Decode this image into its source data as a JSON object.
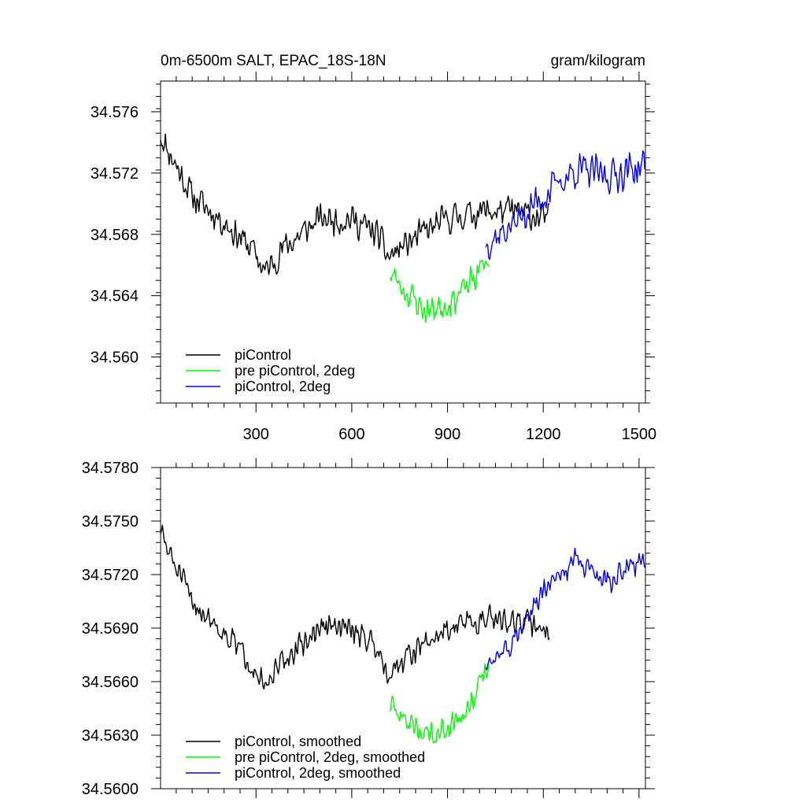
{
  "chart_data": [
    {
      "type": "line",
      "title": "0m-6500m SALT, EPAC_18S-18N",
      "units": "gram/kilogram",
      "xlabel": "",
      "ylabel": "",
      "xlim": [
        1,
        1520
      ],
      "ylim": [
        34.557,
        34.578
      ],
      "x_ticks": [
        300,
        600,
        900,
        1200,
        1500
      ],
      "x_tick_labels": [
        "300",
        "600",
        "900",
        "1200",
        "1500"
      ],
      "y_ticks": [
        34.56,
        34.564,
        34.568,
        34.572,
        34.576
      ],
      "y_tick_labels": [
        "34.560",
        "34.564",
        "34.568",
        "34.572",
        "34.576"
      ],
      "legend_position": "bottom-left",
      "series": [
        {
          "name": "piControl",
          "color": "#000000",
          "x_start": 1,
          "x_end": 1220,
          "trend": [
            [
              1,
              34.5745
            ],
            [
              25,
              34.5735
            ],
            [
              100,
              34.5705
            ],
            [
              200,
              34.5688
            ],
            [
              290,
              34.567
            ],
            [
              330,
              34.5655
            ],
            [
              380,
              34.567
            ],
            [
              500,
              34.569
            ],
            [
              600,
              34.569
            ],
            [
              680,
              34.568
            ],
            [
              715,
              34.5665
            ],
            [
              780,
              34.5675
            ],
            [
              900,
              34.569
            ],
            [
              1000,
              34.5695
            ],
            [
              1100,
              34.5695
            ],
            [
              1220,
              34.569
            ]
          ],
          "noise": 0.0012,
          "seed": 11
        },
        {
          "name": "pre piControl, 2deg",
          "color": "#00ff00",
          "x_start": 720,
          "x_end": 1030,
          "trend": [
            [
              720,
              34.5655
            ],
            [
              760,
              34.5645
            ],
            [
              830,
              34.563
            ],
            [
              900,
              34.5635
            ],
            [
              960,
              34.5645
            ],
            [
              1030,
              34.5665
            ]
          ],
          "noise": 0.0012,
          "seed": 23
        },
        {
          "name": "piControl, 2deg",
          "color": "#0000ff",
          "x_start": 1020,
          "x_end": 1520,
          "trend": [
            [
              1020,
              34.5675
            ],
            [
              1100,
              34.5685
            ],
            [
              1200,
              34.5705
            ],
            [
              1300,
              34.5722
            ],
            [
              1400,
              34.5718
            ],
            [
              1520,
              34.5725
            ]
          ],
          "noise": 0.0014,
          "seed": 37
        }
      ]
    },
    {
      "type": "line",
      "title": "",
      "xlabel": "",
      "ylabel": "",
      "xlim": [
        1,
        1520
      ],
      "ylim": [
        34.56,
        34.578
      ],
      "x_ticks": [
        300,
        600,
        900,
        1200,
        1500
      ],
      "x_tick_labels": [],
      "y_ticks": [
        34.56,
        34.563,
        34.566,
        34.569,
        34.572,
        34.575,
        34.578
      ],
      "y_tick_labels": [
        "34.5600",
        "34.5630",
        "34.5660",
        "34.5690",
        "34.5720",
        "34.5750",
        "34.5780"
      ],
      "legend_position": "bottom-left",
      "series": [
        {
          "name": "piControl, smoothed",
          "color": "#000000",
          "x_start": 1,
          "x_end": 1220,
          "trend": [
            [
              1,
              34.5745
            ],
            [
              20,
              34.5735
            ],
            [
              100,
              34.5705
            ],
            [
              200,
              34.5688
            ],
            [
              290,
              34.567
            ],
            [
              330,
              34.5655
            ],
            [
              380,
              34.567
            ],
            [
              500,
              34.569
            ],
            [
              600,
              34.569
            ],
            [
              680,
              34.568
            ],
            [
              715,
              34.5665
            ],
            [
              780,
              34.5675
            ],
            [
              900,
              34.569
            ],
            [
              1000,
              34.5695
            ],
            [
              1100,
              34.5695
            ],
            [
              1220,
              34.569
            ]
          ],
          "noise": 0.0009,
          "seed": 51
        },
        {
          "name": "pre piControl, 2deg, smoothed",
          "color": "#00ff00",
          "x_start": 720,
          "x_end": 1030,
          "trend": [
            [
              720,
              34.5645
            ],
            [
              760,
              34.564
            ],
            [
              830,
              34.563
            ],
            [
              900,
              34.5635
            ],
            [
              960,
              34.5645
            ],
            [
              1030,
              34.5668
            ]
          ],
          "noise": 0.0008,
          "seed": 63
        },
        {
          "name": "piControl, 2deg, smoothed",
          "color": "#0000ff",
          "x_start": 1020,
          "x_end": 1520,
          "trend": [
            [
              1020,
              34.567
            ],
            [
              1100,
              34.568
            ],
            [
              1200,
              34.571
            ],
            [
              1300,
              34.5728
            ],
            [
              1400,
              34.5715
            ],
            [
              1520,
              34.573
            ]
          ],
          "noise": 0.0008,
          "seed": 77
        }
      ]
    }
  ]
}
